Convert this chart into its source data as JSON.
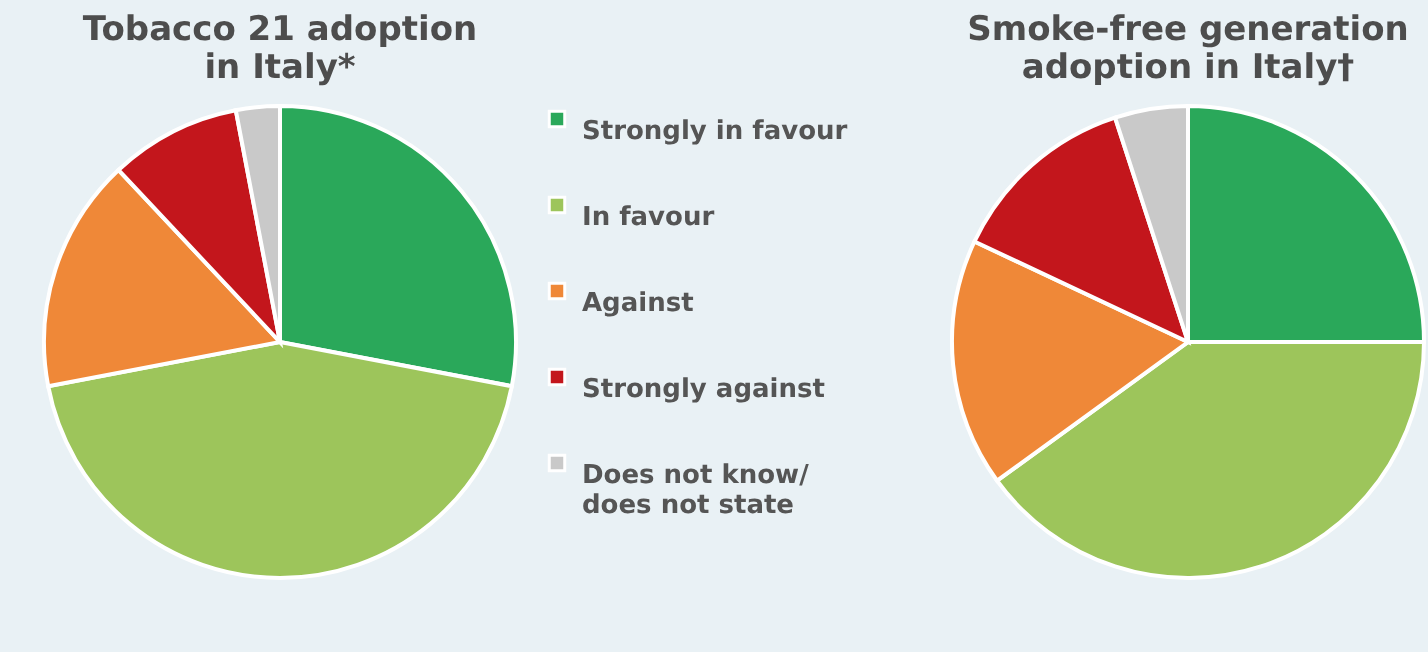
{
  "chart_data": [
    {
      "type": "pie",
      "title": "Tobacco 21 adoption\nin Italy*",
      "categories": [
        "Strongly in favour",
        "In favour",
        "Against",
        "Strongly against",
        "Does not know/\ndoes not state"
      ],
      "values": [
        28,
        44,
        16,
        9,
        3
      ],
      "colors": [
        "#2aa85a",
        "#9dc55b",
        "#ef8838",
        "#c3161c",
        "#c9c9c9"
      ],
      "legend": "right"
    },
    {
      "type": "pie",
      "title": "Smoke-free generation\nadoption in Italy†",
      "categories": [
        null,
        null,
        null,
        null,
        null
      ],
      "values": [
        25,
        40,
        17,
        13,
        5
      ],
      "colors": [
        "#2aa85a",
        "#9dc55b",
        "#ef8838",
        "#c3161c",
        "#c9c9c9"
      ]
    }
  ]
}
